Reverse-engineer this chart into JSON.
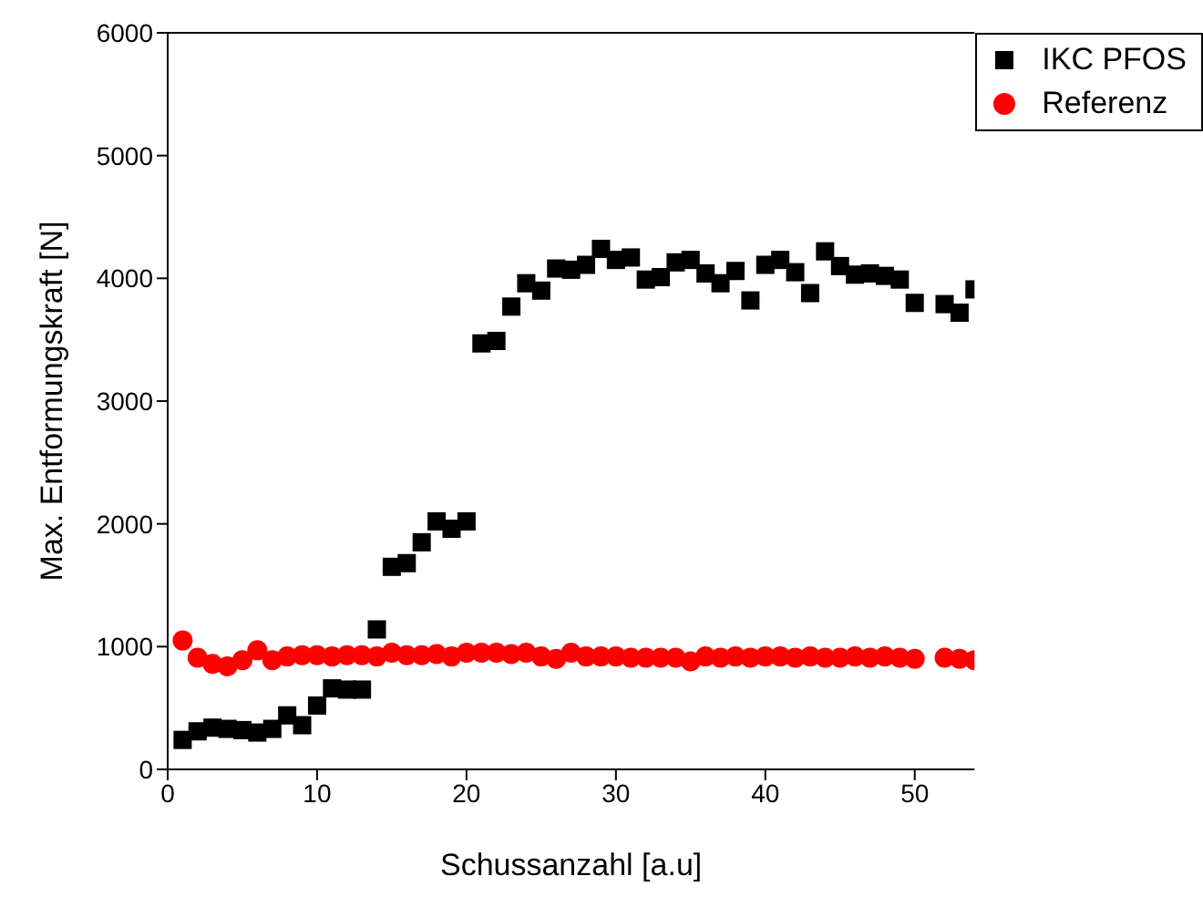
{
  "chart_data": {
    "type": "scatter",
    "xlabel": "Schussanzahl [a.u]",
    "ylabel": "Max. Entformungskraft [N]",
    "x": [
      1,
      2,
      3,
      4,
      5,
      6,
      7,
      8,
      9,
      10,
      11,
      12,
      13,
      14,
      15,
      16,
      17,
      18,
      19,
      20,
      21,
      22,
      23,
      24,
      25,
      26,
      27,
      28,
      29,
      30,
      31,
      32,
      33,
      34,
      35,
      36,
      37,
      38,
      39,
      40,
      41,
      42,
      43,
      44,
      45,
      46,
      47,
      48,
      49,
      50,
      51,
      52,
      53,
      54
    ],
    "series": [
      {
        "name": "IKC PFOS",
        "color": "#000000",
        "marker": "square",
        "values": [
          240,
          310,
          340,
          330,
          320,
          300,
          330,
          440,
          360,
          520,
          660,
          650,
          650,
          1140,
          1650,
          1680,
          1850,
          2020,
          1960,
          2020,
          3470,
          3490,
          3770,
          3960,
          3900,
          4080,
          4070,
          4110,
          4240,
          4150,
          4170,
          3990,
          4010,
          4130,
          4150,
          4040,
          3960,
          4060,
          3820,
          4110,
          4150,
          4050,
          3880,
          4220,
          4100,
          4030,
          4040,
          4020,
          3990,
          3800,
          null,
          3790,
          3720,
          3910
        ]
      },
      {
        "name": "Referenz",
        "color": "#ff0000",
        "marker": "circle",
        "values": [
          1050,
          910,
          860,
          840,
          890,
          970,
          890,
          920,
          930,
          930,
          920,
          930,
          930,
          920,
          950,
          930,
          930,
          940,
          920,
          950,
          950,
          950,
          940,
          950,
          920,
          900,
          950,
          920,
          920,
          920,
          910,
          910,
          910,
          910,
          880,
          920,
          910,
          920,
          910,
          920,
          920,
          910,
          920,
          910,
          910,
          920,
          910,
          920,
          910,
          900,
          null,
          910,
          900,
          890
        ]
      }
    ],
    "xlim": [
      0,
      54
    ],
    "xticks": [
      0,
      10,
      20,
      30,
      40,
      50
    ],
    "ylim": [
      0,
      6000
    ],
    "yticks": [
      0,
      1000,
      2000,
      3000,
      4000,
      5000,
      6000
    ],
    "grid": false,
    "legend": "top right"
  }
}
